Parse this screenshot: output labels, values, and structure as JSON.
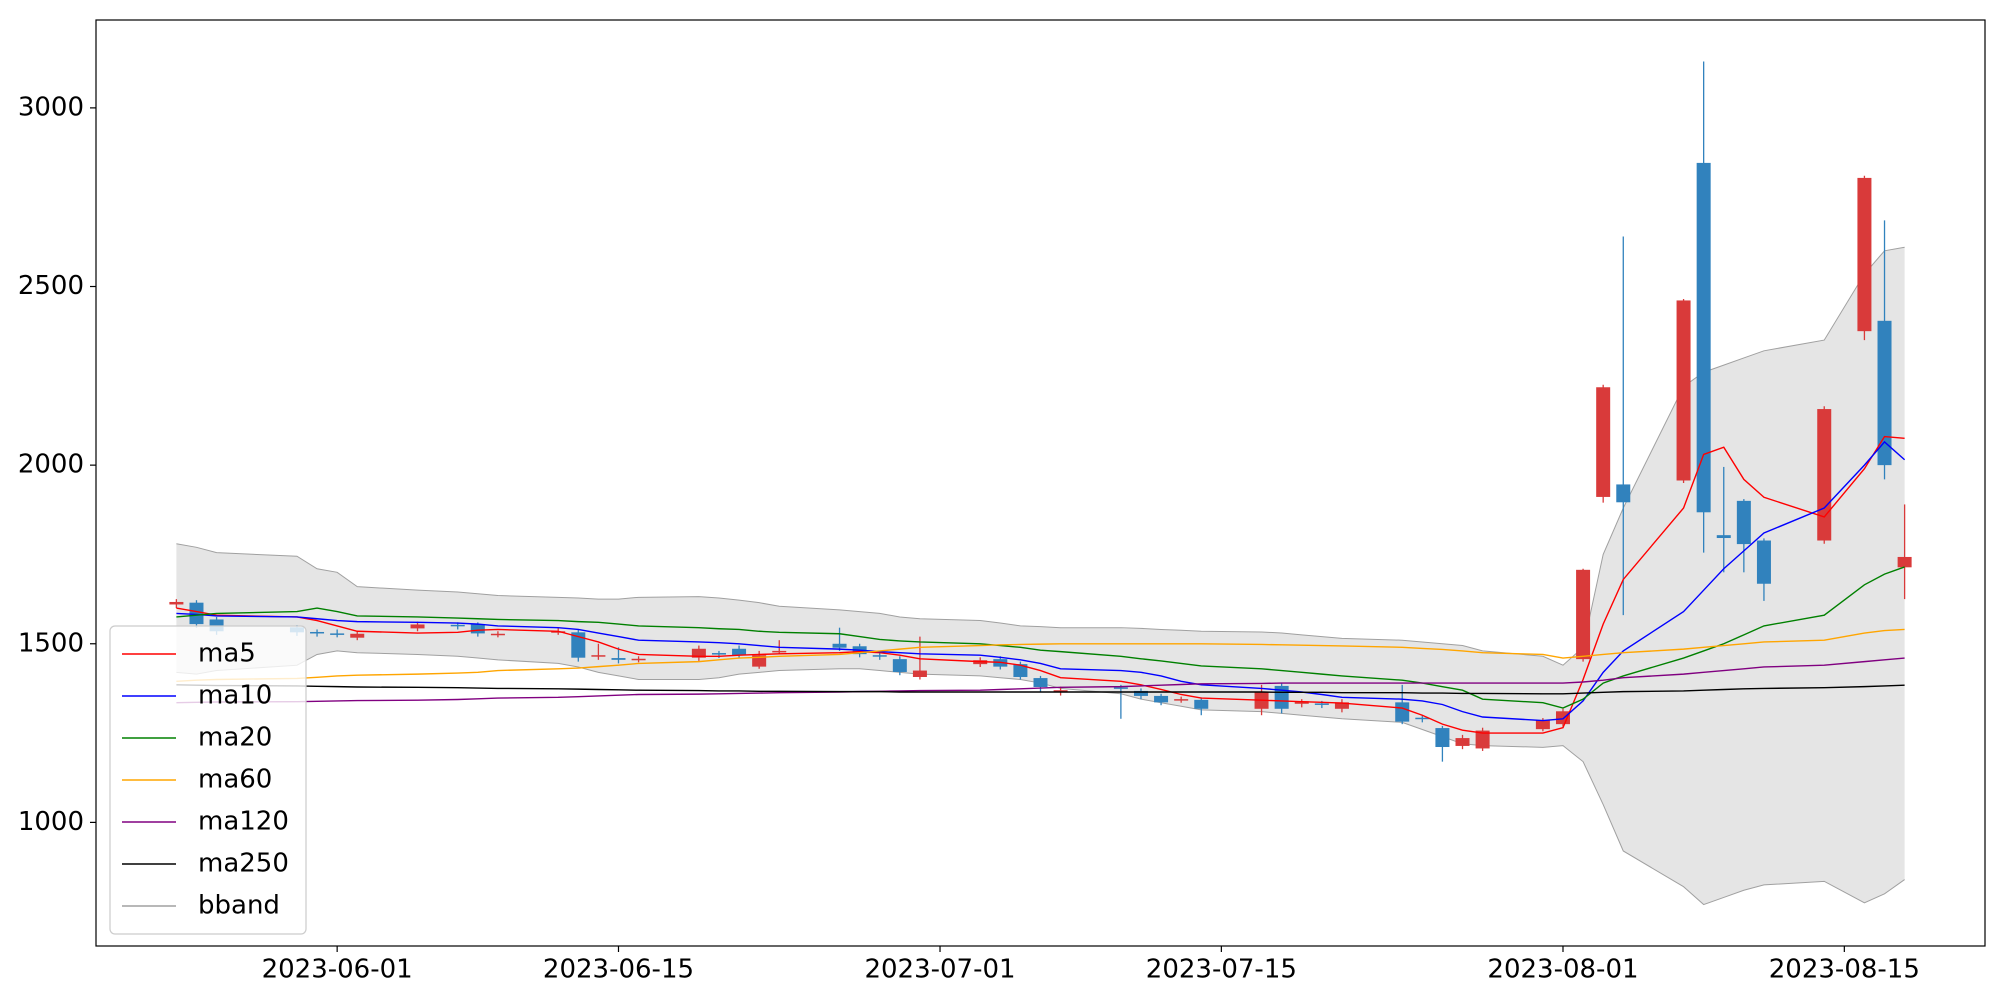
{
  "chart_data": {
    "type": "candlestick",
    "x": [
      "2023-05-24",
      "2023-05-25",
      "2023-05-26",
      "2023-05-30",
      "2023-05-31",
      "2023-06-01",
      "2023-06-02",
      "2023-06-05",
      "2023-06-07",
      "2023-06-08",
      "2023-06-09",
      "2023-06-12",
      "2023-06-13",
      "2023-06-14",
      "2023-06-15",
      "2023-06-16",
      "2023-06-19",
      "2023-06-20",
      "2023-06-21",
      "2023-06-22",
      "2023-06-23",
      "2023-06-26",
      "2023-06-27",
      "2023-06-28",
      "2023-06-29",
      "2023-06-30",
      "2023-07-03",
      "2023-07-04",
      "2023-07-05",
      "2023-07-06",
      "2023-07-07",
      "2023-07-10",
      "2023-07-11",
      "2023-07-12",
      "2023-07-13",
      "2023-07-14",
      "2023-07-17",
      "2023-07-18",
      "2023-07-19",
      "2023-07-20",
      "2023-07-21",
      "2023-07-24",
      "2023-07-25",
      "2023-07-26",
      "2023-07-27",
      "2023-07-28",
      "2023-07-31",
      "2023-08-01",
      "2023-08-02",
      "2023-08-03",
      "2023-08-04",
      "2023-08-07",
      "2023-08-08",
      "2023-08-09",
      "2023-08-10",
      "2023-08-11",
      "2023-08-14",
      "2023-08-16",
      "2023-08-17",
      "2023-08-18"
    ],
    "open": [
      1610,
      1615,
      1568,
      1546,
      1533,
      1529,
      1517,
      1543,
      1553,
      1554,
      1525,
      1532,
      1532,
      1464,
      1460,
      1455,
      1461,
      1474,
      1486,
      1436,
      1477,
      1500,
      1493,
      1468,
      1457,
      1407,
      1443,
      1457,
      1443,
      1404,
      1368,
      1378,
      1368,
      1354,
      1342,
      1343,
      1318,
      1382,
      1332,
      1333,
      1318,
      1336,
      1293,
      1264,
      1214,
      1207,
      1261,
      1275,
      1457,
      1911,
      1946,
      1957,
      2846,
      1804,
      1900,
      1789,
      1789,
      2375,
      2404,
      1714
    ],
    "high": [
      1625,
      1622,
      1575,
      1552,
      1540,
      1540,
      1535,
      1562,
      1560,
      1560,
      1535,
      1545,
      1540,
      1500,
      1490,
      1465,
      1495,
      1480,
      1495,
      1480,
      1510,
      1545,
      1500,
      1478,
      1465,
      1520,
      1462,
      1465,
      1450,
      1410,
      1380,
      1385,
      1375,
      1360,
      1352,
      1350,
      1385,
      1390,
      1345,
      1340,
      1345,
      1385,
      1300,
      1270,
      1245,
      1265,
      1292,
      1318,
      1710,
      2225,
      2640,
      2465,
      3130,
      1995,
      1905,
      1795,
      2165,
      2810,
      2685,
      1890
    ],
    "low": [
      1600,
      1545,
      1525,
      1522,
      1520,
      1518,
      1510,
      1535,
      1540,
      1520,
      1518,
      1525,
      1450,
      1455,
      1445,
      1448,
      1452,
      1460,
      1460,
      1430,
      1470,
      1480,
      1462,
      1455,
      1412,
      1400,
      1435,
      1428,
      1400,
      1365,
      1355,
      1290,
      1345,
      1328,
      1335,
      1300,
      1300,
      1305,
      1322,
      1320,
      1308,
      1275,
      1280,
      1170,
      1205,
      1200,
      1255,
      1268,
      1450,
      1895,
      1580,
      1950,
      1755,
      1700,
      1700,
      1620,
      1780,
      2350,
      1960,
      1625
    ],
    "close": [
      1617,
      1555,
      1535,
      1532,
      1530,
      1527,
      1528,
      1554,
      1550,
      1529,
      1528,
      1535,
      1461,
      1468,
      1455,
      1458,
      1486,
      1470,
      1468,
      1468,
      1480,
      1489,
      1471,
      1465,
      1421,
      1425,
      1454,
      1436,
      1407,
      1379,
      1370,
      1375,
      1354,
      1336,
      1345,
      1318,
      1364,
      1318,
      1339,
      1330,
      1336,
      1282,
      1290,
      1211,
      1236,
      1257,
      1286,
      1311,
      1707,
      2218,
      1896,
      2461,
      1868,
      1796,
      1779,
      1668,
      2157,
      2804,
      2000,
      1743
    ],
    "up_color": "#d93a3a",
    "down_color": "#3182bd",
    "series": [
      {
        "name": "ma5",
        "color": "#ff0000",
        "values": [
          1600,
          1590,
          1580,
          1575,
          1565,
          1550,
          1535,
          1530,
          1532,
          1538,
          1540,
          1535,
          1520,
          1505,
          1485,
          1470,
          1465,
          1465,
          1468,
          1470,
          1472,
          1475,
          1478,
          1475,
          1468,
          1458,
          1450,
          1448,
          1440,
          1425,
          1405,
          1395,
          1385,
          1372,
          1358,
          1348,
          1342,
          1340,
          1338,
          1336,
          1334,
          1320,
          1300,
          1275,
          1258,
          1250,
          1250,
          1265,
          1400,
          1555,
          1680,
          1880,
          2030,
          2050,
          1960,
          1910,
          1855,
          1990,
          2080,
          2075
        ]
      },
      {
        "name": "ma10",
        "color": "#0000ff",
        "values": [
          1585,
          1582,
          1578,
          1575,
          1570,
          1565,
          1562,
          1560,
          1558,
          1555,
          1550,
          1545,
          1540,
          1530,
          1520,
          1510,
          1505,
          1503,
          1500,
          1495,
          1490,
          1485,
          1482,
          1478,
          1475,
          1472,
          1468,
          1462,
          1455,
          1445,
          1430,
          1425,
          1420,
          1410,
          1395,
          1385,
          1375,
          1370,
          1365,
          1358,
          1350,
          1345,
          1340,
          1330,
          1310,
          1295,
          1285,
          1290,
          1340,
          1420,
          1480,
          1590,
          1650,
          1710,
          1760,
          1810,
          1880,
          2000,
          2065,
          2015
        ]
      },
      {
        "name": "ma20",
        "color": "#008000",
        "values": [
          1575,
          1580,
          1585,
          1590,
          1600,
          1590,
          1578,
          1575,
          1572,
          1570,
          1568,
          1565,
          1562,
          1560,
          1555,
          1550,
          1545,
          1542,
          1540,
          1535,
          1532,
          1528,
          1520,
          1512,
          1508,
          1505,
          1500,
          1495,
          1490,
          1482,
          1478,
          1465,
          1458,
          1452,
          1445,
          1438,
          1430,
          1425,
          1420,
          1415,
          1410,
          1398,
          1390,
          1380,
          1370,
          1345,
          1335,
          1320,
          1345,
          1390,
          1410,
          1460,
          1480,
          1500,
          1525,
          1550,
          1580,
          1665,
          1695,
          1715
        ]
      },
      {
        "name": "ma60",
        "color": "#ffa500",
        "values": [
          1395,
          1398,
          1400,
          1403,
          1406,
          1410,
          1412,
          1415,
          1418,
          1420,
          1425,
          1430,
          1432,
          1436,
          1440,
          1445,
          1450,
          1455,
          1460,
          1462,
          1465,
          1470,
          1475,
          1480,
          1485,
          1490,
          1495,
          1497,
          1498,
          1499,
          1500,
          1500,
          1500,
          1500,
          1500,
          1500,
          1498,
          1497,
          1496,
          1495,
          1494,
          1490,
          1487,
          1484,
          1480,
          1475,
          1470,
          1460,
          1465,
          1470,
          1475,
          1485,
          1490,
          1495,
          1500,
          1505,
          1510,
          1530,
          1537,
          1540
        ]
      },
      {
        "name": "ma120",
        "color": "#800080",
        "values": [
          1335,
          1336,
          1337,
          1338,
          1339,
          1340,
          1341,
          1342,
          1344,
          1346,
          1348,
          1350,
          1352,
          1354,
          1356,
          1358,
          1359,
          1360,
          1361,
          1362,
          1363,
          1365,
          1366,
          1367,
          1368,
          1369,
          1370,
          1372,
          1374,
          1376,
          1378,
          1380,
          1382,
          1384,
          1386,
          1388,
          1389,
          1390,
          1390,
          1390,
          1390,
          1390,
          1390,
          1390,
          1390,
          1390,
          1390,
          1390,
          1393,
          1398,
          1405,
          1415,
          1420,
          1425,
          1430,
          1435,
          1440,
          1450,
          1455,
          1460
        ]
      },
      {
        "name": "ma250",
        "color": "#000000",
        "values": [
          1385,
          1384,
          1383,
          1382,
          1381,
          1380,
          1379,
          1378,
          1377,
          1376,
          1375,
          1374,
          1373,
          1372,
          1371,
          1370,
          1369,
          1368,
          1368,
          1367,
          1367,
          1366,
          1366,
          1366,
          1365,
          1365,
          1365,
          1365,
          1365,
          1365,
          1365,
          1365,
          1365,
          1365,
          1365,
          1365,
          1365,
          1364,
          1364,
          1364,
          1363,
          1363,
          1362,
          1362,
          1361,
          1361,
          1360,
          1360,
          1362,
          1364,
          1366,
          1368,
          1370,
          1372,
          1374,
          1375,
          1377,
          1380,
          1382,
          1384
        ]
      }
    ],
    "bband": {
      "name": "bband",
      "color": "#a0a0a0",
      "fill": "#e5e5e5",
      "upper": [
        1780,
        1770,
        1755,
        1745,
        1710,
        1700,
        1660,
        1650,
        1645,
        1640,
        1635,
        1630,
        1628,
        1625,
        1625,
        1630,
        1632,
        1628,
        1622,
        1615,
        1605,
        1595,
        1590,
        1585,
        1575,
        1570,
        1565,
        1558,
        1550,
        1548,
        1545,
        1545,
        1543,
        1540,
        1538,
        1535,
        1533,
        1530,
        1525,
        1520,
        1515,
        1510,
        1505,
        1500,
        1495,
        1480,
        1465,
        1440,
        1490,
        1750,
        1880,
        2220,
        2260,
        2280,
        2300,
        2320,
        2350,
        2535,
        2600,
        2610
      ],
      "lower": [
        1420,
        1415,
        1425,
        1440,
        1470,
        1480,
        1475,
        1470,
        1465,
        1460,
        1455,
        1445,
        1435,
        1420,
        1410,
        1400,
        1400,
        1405,
        1415,
        1420,
        1425,
        1430,
        1430,
        1425,
        1420,
        1415,
        1410,
        1405,
        1400,
        1390,
        1375,
        1360,
        1345,
        1335,
        1325,
        1315,
        1310,
        1305,
        1300,
        1295,
        1290,
        1280,
        1260,
        1240,
        1220,
        1215,
        1210,
        1215,
        1170,
        1050,
        920,
        820,
        770,
        790,
        810,
        825,
        835,
        775,
        800,
        840
      ]
    },
    "xlim": [
      "2023-05-20",
      "2023-08-22"
    ],
    "xticks": [
      "2023-06-01",
      "2023-06-15",
      "2023-07-01",
      "2023-07-15",
      "2023-08-01",
      "2023-08-15"
    ],
    "ylim": [
      654,
      3246
    ],
    "yticks": [
      1000,
      1500,
      2000,
      2500,
      3000
    ],
    "legend": "lower left"
  }
}
